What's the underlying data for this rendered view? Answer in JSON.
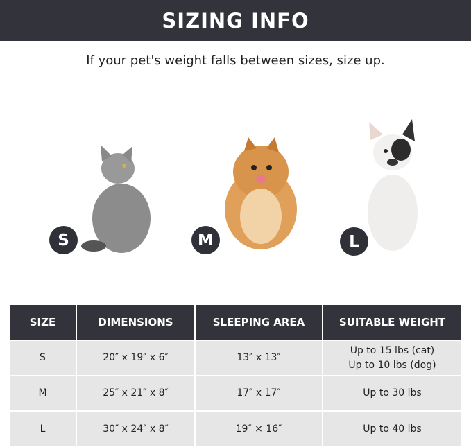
{
  "header": {
    "title": "SIZING INFO"
  },
  "subtitle": "If your pet's weight falls between sizes, size up.",
  "pets": [
    {
      "badge": "S",
      "animal": "cat"
    },
    {
      "badge": "M",
      "animal": "dog-pomeranian"
    },
    {
      "badge": "L",
      "animal": "dog-french-bulldog"
    }
  ],
  "table": {
    "headers": [
      "SIZE",
      "DIMENSIONS",
      "SLEEPING AREA",
      "SUITABLE WEIGHT"
    ],
    "rows": [
      {
        "size": "S",
        "dimensions": "20″ x 19″ x 6″",
        "sleeping_area": "13″ x 13″",
        "weight": [
          "Up to 15 lbs (cat)",
          "Up to 10 lbs (dog)"
        ]
      },
      {
        "size": "M",
        "dimensions": "25″ x 21″ x 8″",
        "sleeping_area": "17″ x 17″",
        "weight": [
          "Up to 30 lbs"
        ]
      },
      {
        "size": "L",
        "dimensions": "30″ x 24″ x 8″",
        "sleeping_area": "19″ × 16″",
        "weight": [
          "Up to 40 lbs"
        ]
      }
    ]
  },
  "colors": {
    "banner": "#33343b",
    "row": "#e6e6e6"
  }
}
